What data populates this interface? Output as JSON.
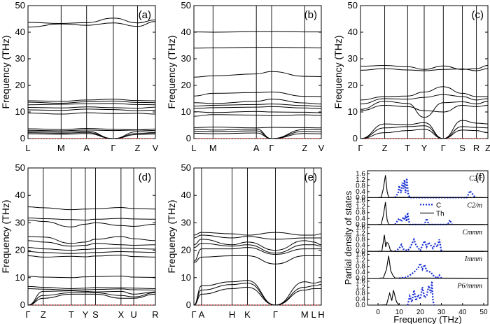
{
  "chart_data": [
    {
      "id": "a",
      "type": "line",
      "panel_label": "(a)",
      "ylabel": "Frequency (THz)",
      "ylim": [
        0,
        50
      ],
      "yticks": [
        0,
        10,
        20,
        30,
        40,
        50
      ],
      "kpoints": [
        "L",
        "M",
        "A",
        "Γ",
        "Z",
        "V"
      ],
      "bands": [
        [
          43.7,
          43.3,
          43.6,
          45.3,
          43.5,
          44.6
        ],
        [
          41.9,
          43.1,
          42.6,
          43.5,
          42.2,
          44.0
        ],
        [
          14.2,
          14.0,
          14.5,
          14.8,
          14.3,
          14.2
        ],
        [
          13.7,
          13.3,
          13.8,
          14.1,
          13.6,
          13.5
        ],
        [
          12.7,
          12.9,
          13.1,
          13.2,
          12.8,
          12.7
        ],
        [
          11.7,
          11.5,
          11.9,
          11.6,
          11.4,
          11.8
        ],
        [
          10.8,
          10.6,
          11.1,
          10.9,
          10.5,
          10.7
        ],
        [
          9.6,
          9.2,
          9.7,
          9.4,
          9.5,
          9.2
        ],
        [
          3.7,
          3.4,
          3.8,
          3.5,
          3.3,
          3.6
        ],
        [
          3.1,
          2.9,
          3.2,
          3.0,
          3.2,
          3.0
        ],
        [
          2.7,
          2.4,
          2.8,
          0.0,
          2.6,
          2.3
        ],
        [
          2.2,
          2.0,
          2.3,
          0.0,
          1.9,
          2.1
        ],
        [
          1.8,
          1.6,
          1.9,
          0.0,
          1.5,
          1.7
        ]
      ]
    },
    {
      "id": "b",
      "type": "line",
      "panel_label": "(b)",
      "ylabel": "Frequency (THz)",
      "ylim": [
        0,
        50
      ],
      "yticks": [
        0,
        10,
        20,
        30,
        40,
        50
      ],
      "kpoints": [
        "L",
        "M",
        "A",
        "Γ",
        "Z",
        "V"
      ],
      "bands": [
        [
          40.1,
          40.0,
          40.2,
          40.2,
          40.1,
          40.1
        ],
        [
          34.0,
          34.1,
          34.3,
          34.3,
          34.2,
          34.1
        ],
        [
          23.1,
          23.6,
          24.3,
          25.2,
          23.4,
          23.3
        ],
        [
          16.0,
          17.0,
          17.3,
          17.5,
          15.9,
          15.8
        ],
        [
          13.5,
          13.2,
          14.0,
          14.8,
          13.4,
          13.0
        ],
        [
          12.2,
          12.5,
          12.8,
          13.0,
          12.4,
          12.1
        ],
        [
          11.3,
          11.6,
          11.8,
          12.0,
          11.5,
          11.2
        ],
        [
          10.1,
          9.8,
          10.2,
          10.0,
          9.9,
          9.7
        ],
        [
          8.4,
          9.0,
          8.8,
          8.6,
          8.9,
          8.7
        ],
        [
          4.1,
          4.3,
          4.0,
          4.2,
          4.1,
          4.0
        ],
        [
          3.5,
          3.2,
          3.6,
          0.0,
          3.4,
          3.3
        ],
        [
          2.8,
          2.6,
          2.9,
          0.0,
          2.7,
          2.5
        ],
        [
          2.0,
          1.8,
          2.1,
          0.0,
          1.9,
          1.8
        ]
      ]
    },
    {
      "id": "c",
      "type": "line",
      "panel_label": "(c)",
      "ylabel": "Frequency (THz)",
      "ylim": [
        0,
        50
      ],
      "yticks": [
        0,
        10,
        20,
        30,
        40,
        50
      ],
      "kpoints": [
        "Γ",
        "Z",
        "T",
        "Y",
        "Γ",
        "S",
        "R",
        "Z"
      ],
      "bands": [
        [
          27.2,
          27.5,
          27.0,
          26.0,
          27.3,
          26.0,
          26.3,
          27.5
        ],
        [
          25.7,
          26.3,
          25.8,
          25.5,
          26.0,
          26.2,
          25.5,
          26.3
        ],
        [
          14.5,
          15.8,
          16.0,
          17.5,
          19.5,
          17.0,
          15.8,
          15.8
        ],
        [
          13.0,
          15.0,
          14.8,
          15.5,
          16.5,
          15.8,
          14.5,
          15.0
        ],
        [
          11.0,
          14.0,
          13.2,
          8.0,
          13.5,
          13.8,
          13.0,
          14.0
        ],
        [
          10.5,
          12.5,
          12.0,
          10.5,
          10.0,
          12.5,
          12.0,
          12.5
        ],
        [
          0.0,
          5.5,
          5.2,
          6.0,
          0.0,
          6.8,
          5.8,
          5.5
        ],
        [
          0.0,
          4.0,
          4.5,
          4.8,
          0.0,
          4.5,
          4.2,
          4.0
        ],
        [
          0.0,
          2.2,
          3.0,
          3.5,
          0.0,
          3.2,
          3.0,
          2.2
        ]
      ]
    },
    {
      "id": "d",
      "type": "line",
      "panel_label": "(d)",
      "ylabel": "Frequency (THz)",
      "ylim": [
        0,
        50
      ],
      "yticks": [
        0,
        10,
        20,
        30,
        40,
        50
      ],
      "kpoints": [
        "Γ",
        "Z",
        "T",
        "Y",
        "S",
        "X",
        "U",
        "R"
      ],
      "bands": [
        [
          35.8,
          35.5,
          34.8,
          35.0,
          35.1,
          35.6,
          35.2,
          35.0
        ],
        [
          31.8,
          31.5,
          31.2,
          31.0,
          31.3,
          31.6,
          31.4,
          31.3
        ],
        [
          31.0,
          30.5,
          28.5,
          29.5,
          30.0,
          29.0,
          28.7,
          29.5
        ],
        [
          25.0,
          24.8,
          22.5,
          23.0,
          24.0,
          25.0,
          24.2,
          23.5
        ],
        [
          23.5,
          23.0,
          21.5,
          21.8,
          22.5,
          22.0,
          21.8,
          22.0
        ],
        [
          21.0,
          20.5,
          20.0,
          20.3,
          20.5,
          20.8,
          20.6,
          20.4
        ],
        [
          19.5,
          19.2,
          18.8,
          19.0,
          19.2,
          19.5,
          19.4,
          19.2
        ],
        [
          18.0,
          17.5,
          17.8,
          17.6,
          17.9,
          18.2,
          17.7,
          17.5
        ],
        [
          10.5,
          10.2,
          10.0,
          10.3,
          10.4,
          10.6,
          10.2,
          10.1
        ],
        [
          6.8,
          6.5,
          6.0,
          6.2,
          6.4,
          6.3,
          6.2,
          6.0
        ],
        [
          6.0,
          5.8,
          5.5,
          5.6,
          5.7,
          5.9,
          5.6,
          5.5
        ],
        [
          0.0,
          5.0,
          5.2,
          5.0,
          4.8,
          5.0,
          4.0,
          4.8
        ],
        [
          0.0,
          3.5,
          4.5,
          4.5,
          4.5,
          3.5,
          3.0,
          4.5
        ],
        [
          0.0,
          2.5,
          4.0,
          4.0,
          4.0,
          2.5,
          2.5,
          4.0
        ]
      ]
    },
    {
      "id": "e",
      "type": "line",
      "panel_label": "(e)",
      "ylabel": "Frequency (THz)",
      "ylim": [
        0,
        50
      ],
      "yticks": [
        0,
        10,
        20,
        30,
        40,
        50
      ],
      "kpoints": [
        "Γ",
        "A",
        "H",
        "K",
        "Γ",
        "M",
        "L",
        "H"
      ],
      "bands": [
        [
          25.5,
          26.5,
          26.0,
          25.5,
          26.5,
          25.5,
          25.5,
          26.0
        ],
        [
          24.5,
          25.5,
          24.5,
          25.0,
          24.0,
          24.5,
          24.5,
          24.5
        ],
        [
          22.0,
          24.0,
          22.0,
          23.0,
          20.0,
          23.5,
          23.0,
          22.0
        ],
        [
          21.0,
          22.5,
          21.5,
          22.0,
          19.0,
          22.0,
          22.0,
          21.5
        ],
        [
          16.0,
          20.5,
          20.5,
          21.0,
          18.5,
          20.5,
          20.5,
          20.5
        ],
        [
          15.5,
          17.5,
          18.0,
          18.0,
          15.0,
          18.0,
          18.0,
          18.0
        ],
        [
          0.0,
          7.0,
          8.5,
          9.0,
          0.0,
          8.5,
          8.0,
          8.5
        ],
        [
          0.0,
          5.5,
          7.5,
          8.0,
          0.0,
          6.5,
          7.0,
          7.5
        ],
        [
          0.0,
          4.0,
          6.0,
          6.5,
          0.0,
          5.5,
          6.0,
          6.0
        ]
      ]
    },
    {
      "id": "f",
      "type": "line",
      "panel_label": "(f)",
      "ylabel": "Partial density of states",
      "xlabel": "Frequency (THz)",
      "xlim": [
        -5,
        52
      ],
      "xticks": [
        0,
        10,
        20,
        30,
        40,
        50
      ],
      "legend": {
        "C": "C",
        "Th": "Th",
        "placement": "top-right"
      },
      "subplots": [
        {
          "phase": "C2/c",
          "ylim": [
            0,
            1.8
          ],
          "yticks": [
            "0.0",
            "0.4",
            "0.8",
            "1.2",
            "1.6"
          ],
          "Th": [
            [
              0,
              0
            ],
            [
              1.5,
              0.02
            ],
            [
              2.5,
              0.6
            ],
            [
              3.5,
              1.5
            ],
            [
              4.3,
              0.4
            ],
            [
              5,
              0.02
            ],
            [
              50,
              0
            ]
          ],
          "C": [
            [
              8,
              0
            ],
            [
              9.5,
              0.3
            ],
            [
              10,
              0.8
            ],
            [
              10.8,
              0.3
            ],
            [
              11.5,
              1.0
            ],
            [
              12,
              0.6
            ],
            [
              12.5,
              1.2
            ],
            [
              13,
              0.3
            ],
            [
              13.6,
              1.3
            ],
            [
              14.2,
              0.3
            ],
            [
              15,
              0
            ],
            [
              42,
              0
            ],
            [
              43.5,
              0.45
            ],
            [
              45,
              0.2
            ],
            [
              46,
              0
            ]
          ]
        },
        {
          "phase": "C2/m",
          "ylim": [
            0,
            1.8
          ],
          "yticks": [
            "0.0",
            "0.4",
            "0.8",
            "1.2",
            "1.6"
          ],
          "Th": [
            [
              0,
              0
            ],
            [
              1.5,
              0.02
            ],
            [
              2.5,
              0.6
            ],
            [
              3.5,
              1.5
            ],
            [
              4.3,
              0.3
            ],
            [
              5,
              0.02
            ],
            [
              50,
              0
            ]
          ],
          "C": [
            [
              8,
              0
            ],
            [
              9,
              0.2
            ],
            [
              10,
              0.4
            ],
            [
              11,
              0.2
            ],
            [
              12,
              0.5
            ],
            [
              12.5,
              0.3
            ],
            [
              13,
              0.6
            ],
            [
              13.5,
              0.2
            ],
            [
              14,
              0.8
            ],
            [
              14.5,
              0.3
            ],
            [
              15,
              0
            ],
            [
              22,
              0
            ],
            [
              23,
              0.4
            ],
            [
              24,
              0
            ],
            [
              33,
              0
            ],
            [
              34,
              0.3
            ],
            [
              35,
              0
            ]
          ]
        },
        {
          "phase": "Cmmm",
          "ylim": [
            0,
            1.8
          ],
          "yticks": [
            "0.0",
            "0.4",
            "0.8",
            "1.2",
            "1.6"
          ],
          "Th": [
            [
              0,
              0
            ],
            [
              1.8,
              0.02
            ],
            [
              3,
              1.1
            ],
            [
              3.6,
              0.3
            ],
            [
              4.2,
              0.6
            ],
            [
              5,
              0.5
            ],
            [
              5.8,
              0.08
            ],
            [
              7,
              0
            ],
            [
              50,
              0
            ]
          ],
          "C": [
            [
              8,
              0
            ],
            [
              10,
              0.2
            ],
            [
              11,
              0.45
            ],
            [
              12,
              0.15
            ],
            [
              14,
              0.05
            ],
            [
              15,
              0.2
            ],
            [
              16,
              0.5
            ],
            [
              17,
              0.8
            ],
            [
              18,
              0.4
            ],
            [
              20,
              0.05
            ],
            [
              21,
              0.4
            ],
            [
              22,
              0.7
            ],
            [
              23,
              0.3
            ],
            [
              24,
              0.6
            ],
            [
              25,
              0.4
            ],
            [
              26,
              0.2
            ],
            [
              27,
              0.5
            ],
            [
              28,
              0.3
            ],
            [
              29,
              0.8
            ],
            [
              30,
              0
            ]
          ]
        },
        {
          "phase": "Immm",
          "ylim": [
            0,
            1.8
          ],
          "yticks": [
            "0.0",
            "0.4",
            "0.8",
            "1.2",
            "1.6"
          ],
          "Th": [
            [
              0,
              0
            ],
            [
              2.5,
              0.02
            ],
            [
              4,
              0.6
            ],
            [
              5,
              1.5
            ],
            [
              6,
              0.5
            ],
            [
              7,
              0.2
            ],
            [
              8,
              0.02
            ],
            [
              50,
              0
            ]
          ],
          "C": [
            [
              10,
              0
            ],
            [
              13,
              0.05
            ],
            [
              15,
              0.2
            ],
            [
              17,
              0.4
            ],
            [
              19,
              0.7
            ],
            [
              20,
              1.0
            ],
            [
              21,
              0.6
            ],
            [
              22,
              0.9
            ],
            [
              23,
              0.5
            ],
            [
              25,
              0.4
            ],
            [
              26,
              0.2
            ],
            [
              28,
              0
            ],
            [
              29,
              0.2
            ],
            [
              30,
              0
            ]
          ]
        },
        {
          "phase": "P6/mmm",
          "ylim": [
            0,
            1.8
          ],
          "yticks": [
            "0.0",
            "0.4",
            "0.8",
            "1.2",
            "1.6"
          ],
          "Th": [
            [
              0,
              0
            ],
            [
              4,
              0.02
            ],
            [
              5.5,
              0.8
            ],
            [
              6.5,
              0.3
            ],
            [
              7.3,
              1.0
            ],
            [
              8,
              0.6
            ],
            [
              8.8,
              0.2
            ],
            [
              10,
              0
            ],
            [
              50,
              0
            ]
          ],
          "C": [
            [
              14,
              0
            ],
            [
              15,
              0.6
            ],
            [
              16,
              0.2
            ],
            [
              17,
              1.0
            ],
            [
              18,
              0.3
            ],
            [
              19,
              0.7
            ],
            [
              20,
              0.4
            ],
            [
              21,
              1.2
            ],
            [
              22,
              0.5
            ],
            [
              23,
              0.6
            ],
            [
              24,
              1.3
            ],
            [
              25,
              0.8
            ],
            [
              25.5,
              1.6
            ],
            [
              26,
              0.3
            ],
            [
              26.5,
              0
            ]
          ]
        }
      ]
    }
  ]
}
